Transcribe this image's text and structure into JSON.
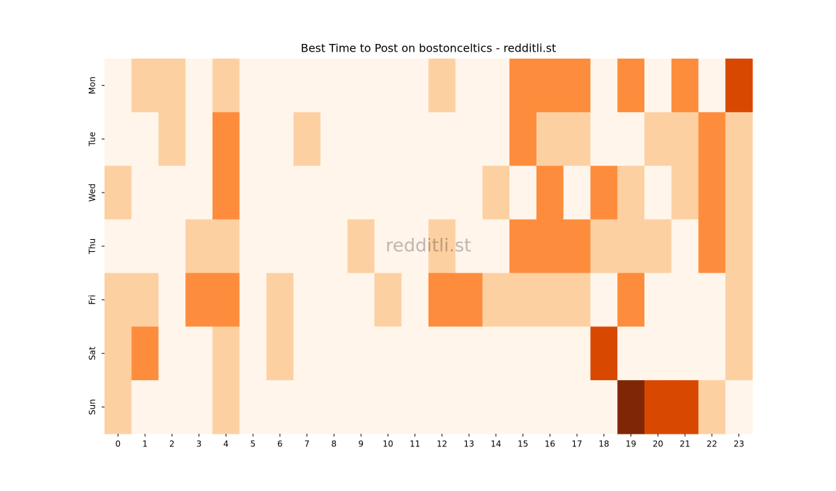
{
  "chart_data": {
    "type": "heatmap",
    "title": "Best Time to Post on bostonceltics - redditli.st",
    "watermark": "redditli.st",
    "x_categories": [
      "0",
      "1",
      "2",
      "3",
      "4",
      "5",
      "6",
      "7",
      "8",
      "9",
      "10",
      "11",
      "12",
      "13",
      "14",
      "15",
      "16",
      "17",
      "18",
      "19",
      "20",
      "21",
      "22",
      "23"
    ],
    "y_categories": [
      "Mon",
      "Tue",
      "Wed",
      "Thu",
      "Fri",
      "Sat",
      "Sun"
    ],
    "colors": [
      "#fff5eb",
      "#fdd0a2",
      "#fd8d3c",
      "#d94801",
      "#7f2704"
    ],
    "values": [
      [
        0,
        1,
        1,
        0,
        1,
        0,
        0,
        0,
        0,
        0,
        0,
        0,
        1,
        0,
        0,
        2,
        2,
        2,
        0,
        2,
        0,
        2,
        0,
        3
      ],
      [
        0,
        0,
        1,
        0,
        2,
        0,
        0,
        1,
        0,
        0,
        0,
        0,
        0,
        0,
        0,
        2,
        1,
        1,
        0,
        0,
        1,
        1,
        2,
        1
      ],
      [
        1,
        0,
        0,
        0,
        2,
        0,
        0,
        0,
        0,
        0,
        0,
        0,
        0,
        0,
        1,
        0,
        2,
        0,
        2,
        1,
        0,
        1,
        2,
        1
      ],
      [
        0,
        0,
        0,
        1,
        1,
        0,
        0,
        0,
        0,
        1,
        0,
        0,
        1,
        0,
        0,
        2,
        2,
        2,
        1,
        1,
        1,
        0,
        2,
        1
      ],
      [
        1,
        1,
        0,
        2,
        2,
        0,
        1,
        0,
        0,
        0,
        1,
        0,
        2,
        2,
        1,
        1,
        1,
        1,
        0,
        2,
        0,
        0,
        0,
        1
      ],
      [
        1,
        2,
        0,
        0,
        1,
        0,
        1,
        0,
        0,
        0,
        0,
        0,
        0,
        0,
        0,
        0,
        0,
        0,
        3,
        0,
        0,
        0,
        0,
        1
      ],
      [
        1,
        0,
        0,
        0,
        1,
        0,
        0,
        0,
        0,
        0,
        0,
        0,
        0,
        0,
        0,
        0,
        0,
        0,
        0,
        4,
        3,
        3,
        1,
        0
      ]
    ]
  }
}
